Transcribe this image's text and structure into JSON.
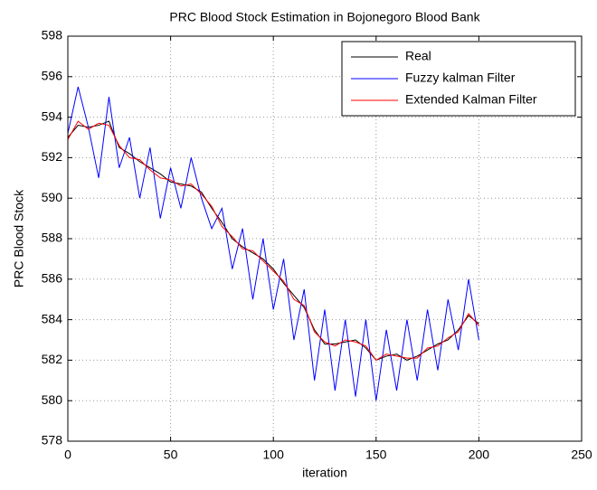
{
  "chart_data": {
    "type": "line",
    "title": "PRC Blood Stock Estimation in Bojonegoro Blood Bank",
    "xlabel": "iteration",
    "ylabel": "PRC Blood Stock",
    "x": [
      0,
      5,
      10,
      15,
      20,
      25,
      30,
      35,
      40,
      45,
      50,
      55,
      60,
      65,
      70,
      75,
      80,
      85,
      90,
      95,
      100,
      105,
      110,
      115,
      120,
      125,
      130,
      135,
      140,
      145,
      150,
      155,
      160,
      165,
      170,
      175,
      180,
      185,
      190,
      195,
      200
    ],
    "series": [
      {
        "name": "Real",
        "color": "#000000",
        "values": [
          593.0,
          593.6,
          593.5,
          593.6,
          593.8,
          592.5,
          592.2,
          591.8,
          591.5,
          591.2,
          590.8,
          590.7,
          590.6,
          590.3,
          589.5,
          588.8,
          588.0,
          587.6,
          587.3,
          587.0,
          586.5,
          585.8,
          585.2,
          584.6,
          583.5,
          582.8,
          582.8,
          582.9,
          583.0,
          582.6,
          582.0,
          582.2,
          582.3,
          582.0,
          582.2,
          582.5,
          582.8,
          583.0,
          583.5,
          584.2,
          583.8
        ]
      },
      {
        "name": "Fuzzy kalman Filter",
        "color": "#0000ff",
        "values": [
          593.2,
          595.5,
          593.5,
          591.0,
          595.0,
          591.5,
          593.0,
          590.0,
          592.5,
          589.0,
          591.5,
          589.5,
          592.0,
          590.0,
          588.5,
          589.5,
          586.5,
          588.5,
          585.0,
          588.0,
          584.5,
          587.0,
          583.0,
          585.5,
          581.0,
          584.5,
          580.5,
          584.0,
          580.2,
          584.0,
          580.0,
          583.5,
          580.5,
          584.0,
          581.0,
          584.5,
          581.5,
          585.0,
          582.5,
          586.0,
          583.0
        ]
      },
      {
        "name": "Extended Kalman Filter",
        "color": "#ff0000",
        "values": [
          592.9,
          593.8,
          593.4,
          593.7,
          593.6,
          592.6,
          592.0,
          591.9,
          591.4,
          591.0,
          590.9,
          590.6,
          590.7,
          590.2,
          589.6,
          588.6,
          588.1,
          587.5,
          587.4,
          586.9,
          586.4,
          585.9,
          585.0,
          584.7,
          583.4,
          582.9,
          582.7,
          583.0,
          582.9,
          582.7,
          582.0,
          582.3,
          582.2,
          582.1,
          582.1,
          582.6,
          582.7,
          583.1,
          583.4,
          584.3,
          583.7
        ]
      }
    ],
    "xlim": [
      0,
      250
    ],
    "xticks": [
      0,
      50,
      100,
      150,
      200,
      250
    ],
    "ylim": [
      578,
      598
    ],
    "yticks": [
      578,
      580,
      582,
      584,
      586,
      588,
      590,
      592,
      594,
      596,
      598
    ],
    "grid": true,
    "legend": "upper right"
  }
}
